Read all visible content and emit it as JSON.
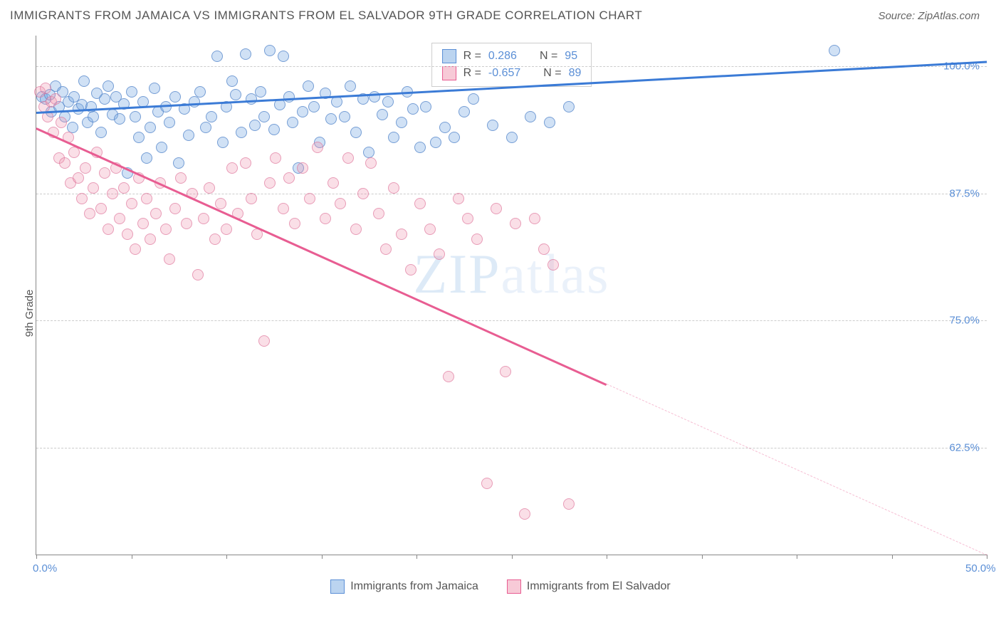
{
  "title": "IMMIGRANTS FROM JAMAICA VS IMMIGRANTS FROM EL SALVADOR 9TH GRADE CORRELATION CHART",
  "source": "Source: ZipAtlas.com",
  "y_axis_label": "9th Grade",
  "watermark": "ZIPatlas",
  "chart": {
    "type": "scatter",
    "xlim": [
      0,
      50
    ],
    "ylim": [
      52,
      103
    ],
    "x_ticks": [
      0,
      5,
      10,
      15,
      20,
      25,
      30,
      35,
      40,
      45,
      50
    ],
    "x_tick_labels": {
      "0": "0.0%",
      "50": "50.0%"
    },
    "y_ticks": [
      62.5,
      75.0,
      87.5,
      100.0
    ],
    "y_tick_labels": [
      "62.5%",
      "75.0%",
      "87.5%",
      "100.0%"
    ],
    "grid_color": "#cccccc",
    "background_color": "#ffffff",
    "point_radius": 8,
    "series": [
      {
        "name": "Immigrants from Jamaica",
        "color": "#78aae1",
        "border": "#5082c8",
        "R": "0.286",
        "N": "95",
        "trend": {
          "x1": 0,
          "y1": 95.5,
          "x2": 50,
          "y2": 100.5,
          "solid_to_x": 50
        },
        "points": [
          [
            0.3,
            97
          ],
          [
            0.5,
            96.8
          ],
          [
            0.7,
            97.2
          ],
          [
            0.8,
            95.5
          ],
          [
            1,
            98
          ],
          [
            1.2,
            96
          ],
          [
            1.4,
            97.5
          ],
          [
            1.5,
            95
          ],
          [
            1.7,
            96.5
          ],
          [
            1.9,
            94
          ],
          [
            2,
            97
          ],
          [
            2.2,
            95.8
          ],
          [
            2.4,
            96.2
          ],
          [
            2.5,
            98.5
          ],
          [
            2.7,
            94.5
          ],
          [
            2.9,
            96
          ],
          [
            3,
            95
          ],
          [
            3.2,
            97.3
          ],
          [
            3.4,
            93.5
          ],
          [
            3.6,
            96.8
          ],
          [
            3.8,
            98
          ],
          [
            4,
            95.2
          ],
          [
            4.2,
            97
          ],
          [
            4.4,
            94.8
          ],
          [
            4.6,
            96.3
          ],
          [
            4.8,
            89.5
          ],
          [
            5,
            97.5
          ],
          [
            5.2,
            95
          ],
          [
            5.4,
            93
          ],
          [
            5.6,
            96.5
          ],
          [
            5.8,
            91
          ],
          [
            6,
            94
          ],
          [
            6.2,
            97.8
          ],
          [
            6.4,
            95.5
          ],
          [
            6.6,
            92
          ],
          [
            6.8,
            96
          ],
          [
            7,
            94.5
          ],
          [
            7.3,
            97
          ],
          [
            7.5,
            90.5
          ],
          [
            7.8,
            95.8
          ],
          [
            8,
            93.2
          ],
          [
            8.3,
            96.5
          ],
          [
            8.6,
            97.5
          ],
          [
            8.9,
            94
          ],
          [
            9.2,
            95
          ],
          [
            9.5,
            101
          ],
          [
            9.8,
            92.5
          ],
          [
            10,
            96
          ],
          [
            10.3,
            98.5
          ],
          [
            10.5,
            97.2
          ],
          [
            10.8,
            93.5
          ],
          [
            11,
            101.2
          ],
          [
            11.3,
            96.8
          ],
          [
            11.5,
            94.2
          ],
          [
            11.8,
            97.5
          ],
          [
            12,
            95
          ],
          [
            12.3,
            101.5
          ],
          [
            12.5,
            93.8
          ],
          [
            12.8,
            96.2
          ],
          [
            13,
            101
          ],
          [
            13.3,
            97
          ],
          [
            13.5,
            94.5
          ],
          [
            13.8,
            90
          ],
          [
            14,
            95.5
          ],
          [
            14.3,
            98
          ],
          [
            14.6,
            96
          ],
          [
            14.9,
            92.5
          ],
          [
            15.2,
            97.3
          ],
          [
            15.5,
            94.8
          ],
          [
            15.8,
            96.5
          ],
          [
            16.2,
            95
          ],
          [
            16.5,
            98
          ],
          [
            16.8,
            93.5
          ],
          [
            17.2,
            96.8
          ],
          [
            17.5,
            91.5
          ],
          [
            17.8,
            97
          ],
          [
            18.2,
            95.2
          ],
          [
            18.5,
            96.5
          ],
          [
            18.8,
            93
          ],
          [
            19.2,
            94.5
          ],
          [
            19.5,
            97.5
          ],
          [
            19.8,
            95.8
          ],
          [
            20.2,
            92
          ],
          [
            20.5,
            96
          ],
          [
            21,
            92.5
          ],
          [
            21.5,
            94
          ],
          [
            22,
            93
          ],
          [
            22.5,
            95.5
          ],
          [
            23,
            96.8
          ],
          [
            24,
            94.2
          ],
          [
            25,
            93
          ],
          [
            26,
            95
          ],
          [
            27,
            94.5
          ],
          [
            28,
            96
          ],
          [
            42,
            101.5
          ]
        ]
      },
      {
        "name": "Immigrants from El Salvador",
        "color": "#f096af",
        "border": "#dc6e96",
        "R": "-0.657",
        "N": "89",
        "trend": {
          "x1": 0,
          "y1": 94,
          "x2": 50,
          "y2": 52,
          "solid_to_x": 30
        },
        "points": [
          [
            0.2,
            97.5
          ],
          [
            0.4,
            96
          ],
          [
            0.5,
            97.8
          ],
          [
            0.6,
            95
          ],
          [
            0.8,
            96.5
          ],
          [
            0.9,
            93.5
          ],
          [
            1,
            96.8
          ],
          [
            1.2,
            91
          ],
          [
            1.3,
            94.5
          ],
          [
            1.5,
            90.5
          ],
          [
            1.7,
            93
          ],
          [
            1.8,
            88.5
          ],
          [
            2,
            91.5
          ],
          [
            2.2,
            89
          ],
          [
            2.4,
            87
          ],
          [
            2.6,
            90
          ],
          [
            2.8,
            85.5
          ],
          [
            3,
            88
          ],
          [
            3.2,
            91.5
          ],
          [
            3.4,
            86
          ],
          [
            3.6,
            89.5
          ],
          [
            3.8,
            84
          ],
          [
            4,
            87.5
          ],
          [
            4.2,
            90
          ],
          [
            4.4,
            85
          ],
          [
            4.6,
            88
          ],
          [
            4.8,
            83.5
          ],
          [
            5,
            86.5
          ],
          [
            5.2,
            82
          ],
          [
            5.4,
            89
          ],
          [
            5.6,
            84.5
          ],
          [
            5.8,
            87
          ],
          [
            6,
            83
          ],
          [
            6.3,
            85.5
          ],
          [
            6.5,
            88.5
          ],
          [
            6.8,
            84
          ],
          [
            7,
            81
          ],
          [
            7.3,
            86
          ],
          [
            7.6,
            89
          ],
          [
            7.9,
            84.5
          ],
          [
            8.2,
            87.5
          ],
          [
            8.5,
            79.5
          ],
          [
            8.8,
            85
          ],
          [
            9.1,
            88
          ],
          [
            9.4,
            83
          ],
          [
            9.7,
            86.5
          ],
          [
            10,
            84
          ],
          [
            10.3,
            90
          ],
          [
            10.6,
            85.5
          ],
          [
            11,
            90.5
          ],
          [
            11.3,
            87
          ],
          [
            11.6,
            83.5
          ],
          [
            12,
            73
          ],
          [
            12.3,
            88.5
          ],
          [
            12.6,
            91
          ],
          [
            13,
            86
          ],
          [
            13.3,
            89
          ],
          [
            13.6,
            84.5
          ],
          [
            14,
            90
          ],
          [
            14.4,
            87
          ],
          [
            14.8,
            92
          ],
          [
            15.2,
            85
          ],
          [
            15.6,
            88.5
          ],
          [
            16,
            86.5
          ],
          [
            16.4,
            91
          ],
          [
            16.8,
            84
          ],
          [
            17.2,
            87.5
          ],
          [
            17.6,
            90.5
          ],
          [
            18,
            85.5
          ],
          [
            18.4,
            82
          ],
          [
            18.8,
            88
          ],
          [
            19.2,
            83.5
          ],
          [
            19.7,
            80
          ],
          [
            20.2,
            86.5
          ],
          [
            20.7,
            84
          ],
          [
            21.2,
            81.5
          ],
          [
            21.7,
            69.5
          ],
          [
            22.2,
            87
          ],
          [
            22.7,
            85
          ],
          [
            23.2,
            83
          ],
          [
            23.7,
            59
          ],
          [
            24.2,
            86
          ],
          [
            24.7,
            70
          ],
          [
            25.2,
            84.5
          ],
          [
            25.7,
            56
          ],
          [
            26.2,
            85
          ],
          [
            26.7,
            82
          ],
          [
            27.2,
            80.5
          ],
          [
            28,
            57
          ]
        ]
      }
    ]
  },
  "legend_stats": {
    "r_label": "R =",
    "n_label": "N ="
  },
  "bottom_legend": [
    {
      "label": "Immigrants from Jamaica",
      "class": "blue"
    },
    {
      "label": "Immigrants from El Salvador",
      "class": "pink"
    }
  ]
}
